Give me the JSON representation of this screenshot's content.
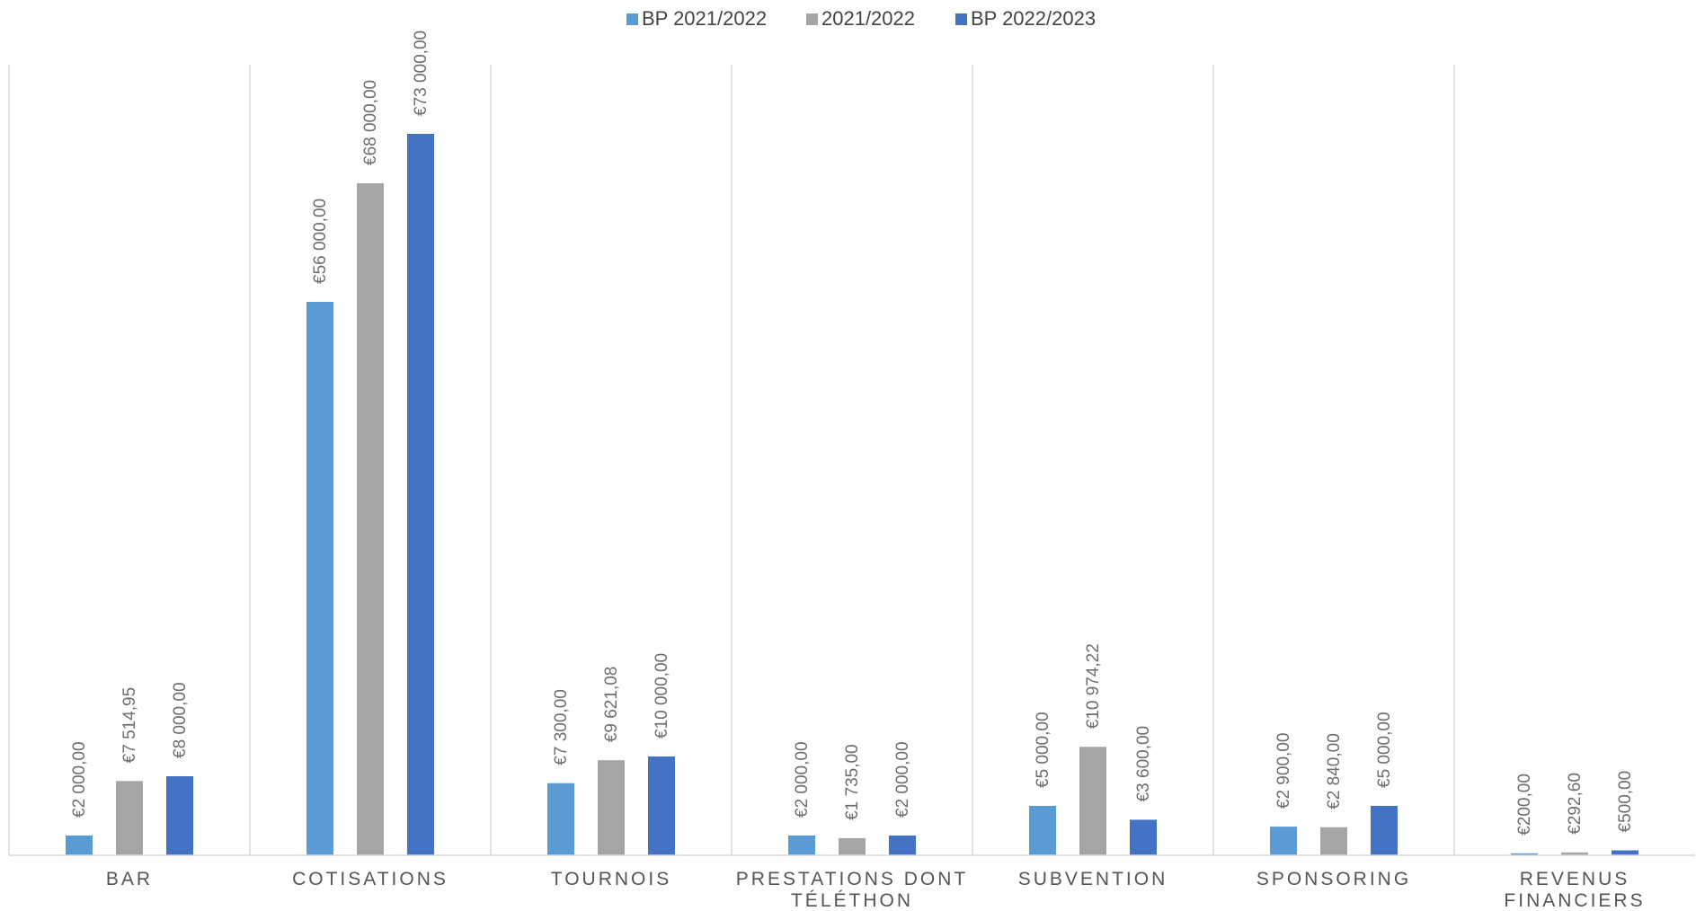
{
  "chart_data": {
    "type": "bar",
    "title": "",
    "xlabel": "",
    "ylabel": "",
    "ylim": [
      0,
      80000
    ],
    "grid": false,
    "legend_position": "top",
    "categories": [
      [
        "BAR"
      ],
      [
        "COTISATIONS"
      ],
      [
        "TOURNOIS"
      ],
      [
        "PRESTATIONS DONT",
        "TÉLÉTHON"
      ],
      [
        "SUBVENTION"
      ],
      [
        "SPONSORING"
      ],
      [
        "REVENUS",
        "FINANCIERS"
      ]
    ],
    "series": [
      {
        "name": "BP 2021/2022",
        "color": "#5b9bd5",
        "values": [
          2000,
          56000,
          7300,
          2000,
          5000,
          2900,
          200
        ],
        "labels": [
          "€2 000,00",
          "€56 000,00",
          "€7 300,00",
          "€2 000,00",
          "€5 000,00",
          "€2 900,00",
          "€200,00"
        ]
      },
      {
        "name": "2021/2022",
        "color": "#a5a5a5",
        "values": [
          7514.95,
          68000,
          9621.08,
          1735,
          10974.22,
          2840,
          292.6
        ],
        "labels": [
          "€7 514,95",
          "€68 000,00",
          "€9 621,08",
          "€1 735,00",
          "€10 974,22",
          "€2 840,00",
          "€292,60"
        ]
      },
      {
        "name": "BP 2022/2023",
        "color": "#4472c4",
        "values": [
          8000,
          73000,
          10000,
          2000,
          3600,
          5000,
          500
        ],
        "labels": [
          "€8 000,00",
          "€73 000,00",
          "€10 000,00",
          "€2 000,00",
          "€3 600,00",
          "€5 000,00",
          "€500,00"
        ]
      }
    ]
  }
}
